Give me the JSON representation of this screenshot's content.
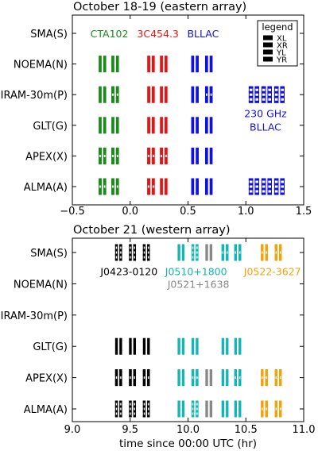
{
  "chart_data": [
    {
      "type": "scatter",
      "title": "October 18-19 (eastern array)",
      "xlabel": "",
      "ylabel": "",
      "xlim": [
        -0.5,
        1.5
      ],
      "xticks": [
        -0.5,
        0.0,
        0.5,
        1.0,
        1.5
      ],
      "xtick_labels": [
        "−0.5",
        "0.0",
        "0.5",
        "1.0",
        "1.5"
      ],
      "stations": [
        "SMA(S)",
        "NOEMA(N)",
        "IRAM-30m(P)",
        "GLT(G)",
        "APEX(X)",
        "ALMA(A)"
      ],
      "legend": {
        "title": "legend",
        "placement": "top-right",
        "entries": [
          "XL",
          "XR",
          "YL",
          "YR"
        ]
      },
      "annotations": [
        {
          "text": "CTA102",
          "color": "#1a8a1a",
          "x": -0.18,
          "station": 0
        },
        {
          "text": "3C454.3",
          "color": "#ee1111",
          "x": 0.24,
          "station": 0
        },
        {
          "text": "BLLAC",
          "color": "#1111dd",
          "x": 0.63,
          "station": 0
        },
        {
          "text": "230 GHz",
          "color": "#1111dd",
          "x": 1.17,
          "station": 2.6
        },
        {
          "text": "BLLAC",
          "color": "#1111dd",
          "x": 1.17,
          "station": 3.05
        }
      ],
      "series": [
        {
          "name": "CTA102",
          "color": "#1a8a1a",
          "width": 0.065,
          "scans": [
            {
              "x": -0.24,
              "station": "NOEMA(N)",
              "style": "solid"
            },
            {
              "x": -0.13,
              "station": "NOEMA(N)",
              "style": "solid"
            },
            {
              "x": -0.24,
              "station": "IRAM-30m(P)",
              "style": "solid"
            },
            {
              "x": -0.13,
              "station": "IRAM-30m(P)",
              "style": "split"
            },
            {
              "x": -0.24,
              "station": "GLT(G)",
              "style": "solid"
            },
            {
              "x": -0.13,
              "station": "GLT(G)",
              "style": "solid"
            },
            {
              "x": -0.24,
              "station": "APEX(X)",
              "style": "split"
            },
            {
              "x": -0.13,
              "station": "APEX(X)",
              "style": "split"
            },
            {
              "x": -0.24,
              "station": "ALMA(A)",
              "style": "split"
            },
            {
              "x": -0.13,
              "station": "ALMA(A)",
              "style": "split"
            }
          ]
        },
        {
          "name": "3C454.3",
          "color": "#ee1111",
          "width": 0.065,
          "scans": [
            {
              "x": 0.18,
              "station": "NOEMA(N)",
              "style": "solid"
            },
            {
              "x": 0.29,
              "station": "NOEMA(N)",
              "style": "solid"
            },
            {
              "x": 0.18,
              "station": "IRAM-30m(P)",
              "style": "solid"
            },
            {
              "x": 0.29,
              "station": "IRAM-30m(P)",
              "style": "solid"
            },
            {
              "x": 0.18,
              "station": "GLT(G)",
              "style": "solid"
            },
            {
              "x": 0.29,
              "station": "GLT(G)",
              "style": "solid"
            },
            {
              "x": 0.18,
              "station": "APEX(X)",
              "style": "split"
            },
            {
              "x": 0.29,
              "station": "APEX(X)",
              "style": "split"
            },
            {
              "x": 0.18,
              "station": "ALMA(A)",
              "style": "split"
            },
            {
              "x": 0.29,
              "station": "ALMA(A)",
              "style": "solid"
            }
          ]
        },
        {
          "name": "BLLAC",
          "color": "#1111dd",
          "width": 0.065,
          "scans": [
            {
              "x": 0.56,
              "station": "NOEMA(N)",
              "style": "solid"
            },
            {
              "x": 0.68,
              "station": "NOEMA(N)",
              "style": "solid"
            },
            {
              "x": 0.56,
              "station": "IRAM-30m(P)",
              "style": "solid"
            },
            {
              "x": 0.68,
              "station": "IRAM-30m(P)",
              "style": "split"
            },
            {
              "x": 0.56,
              "station": "GLT(G)",
              "style": "solid"
            },
            {
              "x": 0.68,
              "station": "GLT(G)",
              "style": "solid"
            },
            {
              "x": 0.56,
              "station": "APEX(X)",
              "style": "solid"
            },
            {
              "x": 0.68,
              "station": "APEX(X)",
              "style": "solid"
            },
            {
              "x": 0.56,
              "station": "ALMA(A)",
              "style": "solid"
            },
            {
              "x": 0.68,
              "station": "ALMA(A)",
              "style": "solid"
            }
          ]
        },
        {
          "name": "230 GHz BLLAC",
          "color": "#1111dd",
          "width": 0.09,
          "scans": [
            {
              "x": 1.07,
              "station": "IRAM-30m(P)",
              "style": "striped"
            },
            {
              "x": 1.18,
              "station": "IRAM-30m(P)",
              "style": "striped"
            },
            {
              "x": 1.29,
              "station": "IRAM-30m(P)",
              "style": "striped"
            },
            {
              "x": 1.07,
              "station": "ALMA(A)",
              "style": "striped"
            },
            {
              "x": 1.18,
              "station": "ALMA(A)",
              "style": "striped"
            },
            {
              "x": 1.29,
              "station": "ALMA(A)",
              "style": "striped"
            }
          ]
        }
      ]
    },
    {
      "type": "scatter",
      "title": "October 21 (western array)",
      "xlabel": "time since 00:00 UTC (hr)",
      "ylabel": "",
      "xlim": [
        9.0,
        11.0
      ],
      "xticks": [
        9.0,
        9.5,
        10.0,
        10.5,
        11.0
      ],
      "xtick_labels": [
        "9.0",
        "9.5",
        "10.0",
        "10.5",
        "11.0"
      ],
      "stations": [
        "SMA(S)",
        "NOEMA(N)",
        "IRAM-30m(P)",
        "GLT(G)",
        "APEX(X)",
        "ALMA(A)"
      ],
      "annotations": [
        {
          "text": "J0423-0120",
          "color": "#000000",
          "x": 9.49,
          "station": 0.6
        },
        {
          "text": "J0510+1800",
          "color": "#15b5b5",
          "x": 10.07,
          "station": 0.6
        },
        {
          "text": "J0521+1638",
          "color": "#888888",
          "x": 10.09,
          "station": 1.0
        },
        {
          "text": "J0522-3627",
          "color": "#f2a20a",
          "x": 10.73,
          "station": 0.6
        }
      ],
      "series": [
        {
          "name": "J0423-0120",
          "color": "#000000",
          "width": 0.06,
          "scans": [
            {
              "x": 9.4,
              "station": "SMA(S)",
              "style": "striped"
            },
            {
              "x": 9.52,
              "station": "SMA(S)",
              "style": "striped"
            },
            {
              "x": 9.64,
              "station": "SMA(S)",
              "style": "striped"
            },
            {
              "x": 9.4,
              "station": "GLT(G)",
              "style": "solid"
            },
            {
              "x": 9.52,
              "station": "GLT(G)",
              "style": "solid"
            },
            {
              "x": 9.64,
              "station": "GLT(G)",
              "style": "solid"
            },
            {
              "x": 9.4,
              "station": "APEX(X)",
              "style": "split"
            },
            {
              "x": 9.52,
              "station": "APEX(X)",
              "style": "split"
            },
            {
              "x": 9.64,
              "station": "APEX(X)",
              "style": "split"
            },
            {
              "x": 9.4,
              "station": "ALMA(A)",
              "style": "striped"
            },
            {
              "x": 9.52,
              "station": "ALMA(A)",
              "style": "striped"
            },
            {
              "x": 9.64,
              "station": "ALMA(A)",
              "style": "striped"
            }
          ]
        },
        {
          "name": "J0510+1800",
          "color": "#15b5b5",
          "width": 0.06,
          "scans": [
            {
              "x": 9.94,
              "station": "SMA(S)",
              "style": "solid"
            },
            {
              "x": 10.06,
              "station": "SMA(S)",
              "style": "striped"
            },
            {
              "x": 10.32,
              "station": "SMA(S)",
              "style": "split"
            },
            {
              "x": 10.43,
              "station": "SMA(S)",
              "style": "split"
            },
            {
              "x": 9.94,
              "station": "GLT(G)",
              "style": "solid"
            },
            {
              "x": 10.06,
              "station": "GLT(G)",
              "style": "solid"
            },
            {
              "x": 10.32,
              "station": "GLT(G)",
              "style": "solid"
            },
            {
              "x": 10.43,
              "station": "GLT(G)",
              "style": "solid"
            },
            {
              "x": 9.94,
              "station": "APEX(X)",
              "style": "solid"
            },
            {
              "x": 10.06,
              "station": "APEX(X)",
              "style": "split"
            },
            {
              "x": 10.32,
              "station": "APEX(X)",
              "style": "solid"
            },
            {
              "x": 10.43,
              "station": "APEX(X)",
              "style": "split"
            },
            {
              "x": 9.94,
              "station": "ALMA(A)",
              "style": "solid"
            },
            {
              "x": 10.06,
              "station": "ALMA(A)",
              "style": "striped"
            },
            {
              "x": 10.32,
              "station": "ALMA(A)",
              "style": "solid"
            },
            {
              "x": 10.43,
              "station": "ALMA(A)",
              "style": "solid"
            }
          ]
        },
        {
          "name": "J0521+1638",
          "color": "#888888",
          "width": 0.06,
          "scans": [
            {
              "x": 10.18,
              "station": "SMA(S)",
              "style": "solid"
            },
            {
              "x": 10.18,
              "station": "APEX(X)",
              "style": "solid"
            },
            {
              "x": 10.18,
              "station": "ALMA(A)",
              "style": "solid"
            }
          ]
        },
        {
          "name": "J0522-3627",
          "color": "#f2a20a",
          "width": 0.06,
          "scans": [
            {
              "x": 10.66,
              "station": "SMA(S)",
              "style": "split"
            },
            {
              "x": 10.78,
              "station": "SMA(S)",
              "style": "split"
            },
            {
              "x": 10.66,
              "station": "APEX(X)",
              "style": "split"
            },
            {
              "x": 10.78,
              "station": "APEX(X)",
              "style": "split"
            },
            {
              "x": 10.66,
              "station": "ALMA(A)",
              "style": "split"
            },
            {
              "x": 10.78,
              "station": "ALMA(A)",
              "style": "split"
            }
          ]
        }
      ]
    }
  ]
}
